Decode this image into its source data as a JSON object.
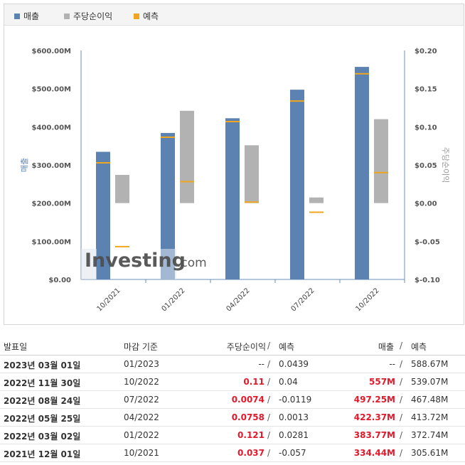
{
  "legend": {
    "revenue": "매출",
    "eps": "주당순이익",
    "forecast": "예측"
  },
  "colors": {
    "revenue": "#5b82b1",
    "eps": "#b2b2b2",
    "forecast": "#f0a61e",
    "red": "#e0192b"
  },
  "chart_data": {
    "type": "bar",
    "categories": [
      "10/2021",
      "01/2022",
      "04/2022",
      "07/2022",
      "10/2022"
    ],
    "series": [
      {
        "name": "매출",
        "axis": "left",
        "values": [
          334.44,
          383.77,
          422.37,
          497.25,
          557
        ],
        "forecast": [
          305.61,
          372.74,
          413.72,
          467.48,
          539.07
        ]
      },
      {
        "name": "주당순이익",
        "axis": "right",
        "values": [
          0.037,
          0.121,
          0.0758,
          0.0074,
          0.11
        ],
        "forecast": [
          -0.057,
          0.0281,
          0.0013,
          -0.0119,
          0.04
        ]
      }
    ],
    "ylabel": "매출",
    "y2label": "주당순이익",
    "ylim": [
      0,
      600
    ],
    "y2lim": [
      -0.1,
      0.2
    ],
    "y_ticks": [
      "$0.00",
      "$100.00M",
      "$200.00M",
      "$300.00M",
      "$400.00M",
      "$500.00M",
      "$600.00M"
    ],
    "y2_ticks": [
      "$-0.10",
      "$-0.05",
      "$0.00",
      "$0.05",
      "$0.10",
      "$0.15",
      "$0.20"
    ],
    "watermark": "Investing.com"
  },
  "table": {
    "headers": {
      "date": "발표일",
      "period": "마감 기준",
      "eps": "주당순이익",
      "eps_sep": "/",
      "eps_forecast": "예측",
      "revenue": "매출",
      "rev_sep": "/",
      "rev_forecast": "예측"
    },
    "rows": [
      {
        "date": "2023년 03월 01일",
        "period": "01/2023",
        "eps": "--",
        "eps_sep": "/",
        "eps_forecast": "0.0439",
        "revenue": "--",
        "rev_sep": "/",
        "rev_forecast": "588.67M",
        "red": false
      },
      {
        "date": "2022년 11월 30일",
        "period": "10/2022",
        "eps": "0.11",
        "eps_sep": "/",
        "eps_forecast": "0.04",
        "revenue": "557M",
        "rev_sep": "/",
        "rev_forecast": "539.07M",
        "red": true
      },
      {
        "date": "2022년 08월 24일",
        "period": "07/2022",
        "eps": "0.0074",
        "eps_sep": "/",
        "eps_forecast": "-0.0119",
        "revenue": "497.25M",
        "rev_sep": "/",
        "rev_forecast": "467.48M",
        "red": true
      },
      {
        "date": "2022년 05월 25일",
        "period": "04/2022",
        "eps": "0.0758",
        "eps_sep": "/",
        "eps_forecast": "0.0013",
        "revenue": "422.37M",
        "rev_sep": "/",
        "rev_forecast": "413.72M",
        "red": true
      },
      {
        "date": "2022년 03월 02일",
        "period": "01/2022",
        "eps": "0.121",
        "eps_sep": "/",
        "eps_forecast": "0.0281",
        "revenue": "383.77M",
        "rev_sep": "/",
        "rev_forecast": "372.74M",
        "red": true
      },
      {
        "date": "2021년 12월 01일",
        "period": "10/2021",
        "eps": "0.037",
        "eps_sep": "/",
        "eps_forecast": "-0.057",
        "revenue": "334.44M",
        "rev_sep": "/",
        "rev_forecast": "305.61M",
        "red": true
      }
    ]
  }
}
